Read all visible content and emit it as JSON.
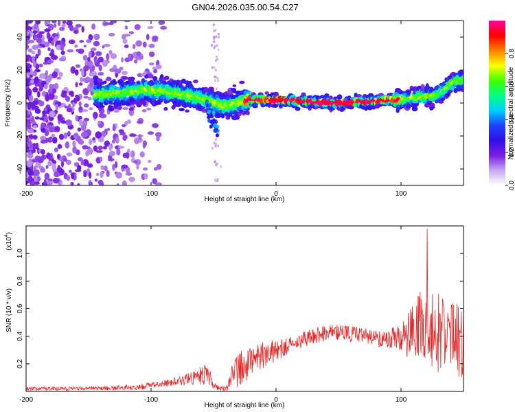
{
  "title": "GN04.2026.035.00.54.C27",
  "chart_data": [
    {
      "type": "heatmap",
      "name": "spectrogram",
      "xlabel": "Height of straight line (km)",
      "ylabel": "Frequency (Hz)",
      "xlim": [
        -200,
        150
      ],
      "ylim": [
        -50,
        50
      ],
      "xticks": [
        -200,
        -100,
        0,
        100
      ],
      "yticks": [
        -40,
        -20,
        0,
        20,
        40
      ],
      "xtick_labels": [
        "-200",
        "-100",
        "0",
        "100"
      ],
      "ytick_labels": [
        "-40",
        "-20",
        "0",
        "20",
        "40"
      ],
      "colorbar": {
        "label": "Normalized spectral amplitude",
        "range": [
          0,
          1
        ],
        "ticks": [
          0.0,
          0.2,
          0.4,
          0.6,
          0.8
        ],
        "tick_labels": [
          "0.0",
          "0.2",
          "0.4",
          "0.6",
          "0.8"
        ],
        "colormap": [
          "#ffffff",
          "#c8a8f0",
          "#7a1ee0",
          "#3010e8",
          "#2040ff",
          "#00d0ff",
          "#00ff80",
          "#40ff00",
          "#ffff00",
          "#ff8000",
          "#ff0000",
          "#ff00a0"
        ]
      },
      "ridge": {
        "description_points_km_hz": [
          [
            -140,
            5
          ],
          [
            -100,
            8
          ],
          [
            -80,
            6
          ],
          [
            -60,
            3
          ],
          [
            -40,
            -2
          ],
          [
            -20,
            2
          ],
          [
            0,
            2
          ],
          [
            50,
            0
          ],
          [
            100,
            2
          ],
          [
            130,
            5
          ],
          [
            145,
            14
          ]
        ],
        "branch_points_km_hz": [
          [
            -55,
            0
          ],
          [
            -50,
            -10
          ],
          [
            -47,
            -18
          ]
        ]
      }
    },
    {
      "type": "line",
      "name": "snr",
      "xlabel": "Height of straight line (km)",
      "ylabel": "SNR (10 * v/v)",
      "y_scale_label": "(x10",
      "y_scale_exponent": "4",
      "xlim": [
        -200,
        150
      ],
      "ylim": [
        0,
        1.2
      ],
      "xticks": [
        -200,
        -100,
        0,
        100
      ],
      "yticks": [
        0.2,
        0.4,
        0.6,
        0.8,
        1.0
      ],
      "xtick_labels": [
        "-200",
        "-100",
        "0",
        "100"
      ],
      "ytick_labels": [
        "0.2",
        "0.4",
        "0.6",
        "0.8",
        "1.0"
      ],
      "color": "#ee2222",
      "envelope": {
        "x": [
          -200,
          -150,
          -110,
          -80,
          -65,
          -55,
          -48,
          -40,
          -35,
          -30,
          -20,
          -10,
          0,
          10,
          20,
          30,
          40,
          50,
          60,
          70,
          80,
          90,
          100,
          110,
          120,
          130,
          140,
          150
        ],
        "mean": [
          0.02,
          0.02,
          0.03,
          0.07,
          0.1,
          0.13,
          0.03,
          0.02,
          0.1,
          0.18,
          0.22,
          0.27,
          0.3,
          0.33,
          0.37,
          0.4,
          0.42,
          0.43,
          0.42,
          0.4,
          0.38,
          0.38,
          0.39,
          0.42,
          0.45,
          0.43,
          0.4,
          0.35
        ],
        "amplitude": [
          0.015,
          0.015,
          0.02,
          0.03,
          0.05,
          0.08,
          0.02,
          0.02,
          0.1,
          0.15,
          0.12,
          0.1,
          0.08,
          0.06,
          0.06,
          0.06,
          0.06,
          0.06,
          0.06,
          0.06,
          0.06,
          0.07,
          0.1,
          0.22,
          0.35,
          0.3,
          0.28,
          0.25
        ]
      },
      "peak": {
        "x": 121,
        "y": 1.18
      }
    }
  ]
}
